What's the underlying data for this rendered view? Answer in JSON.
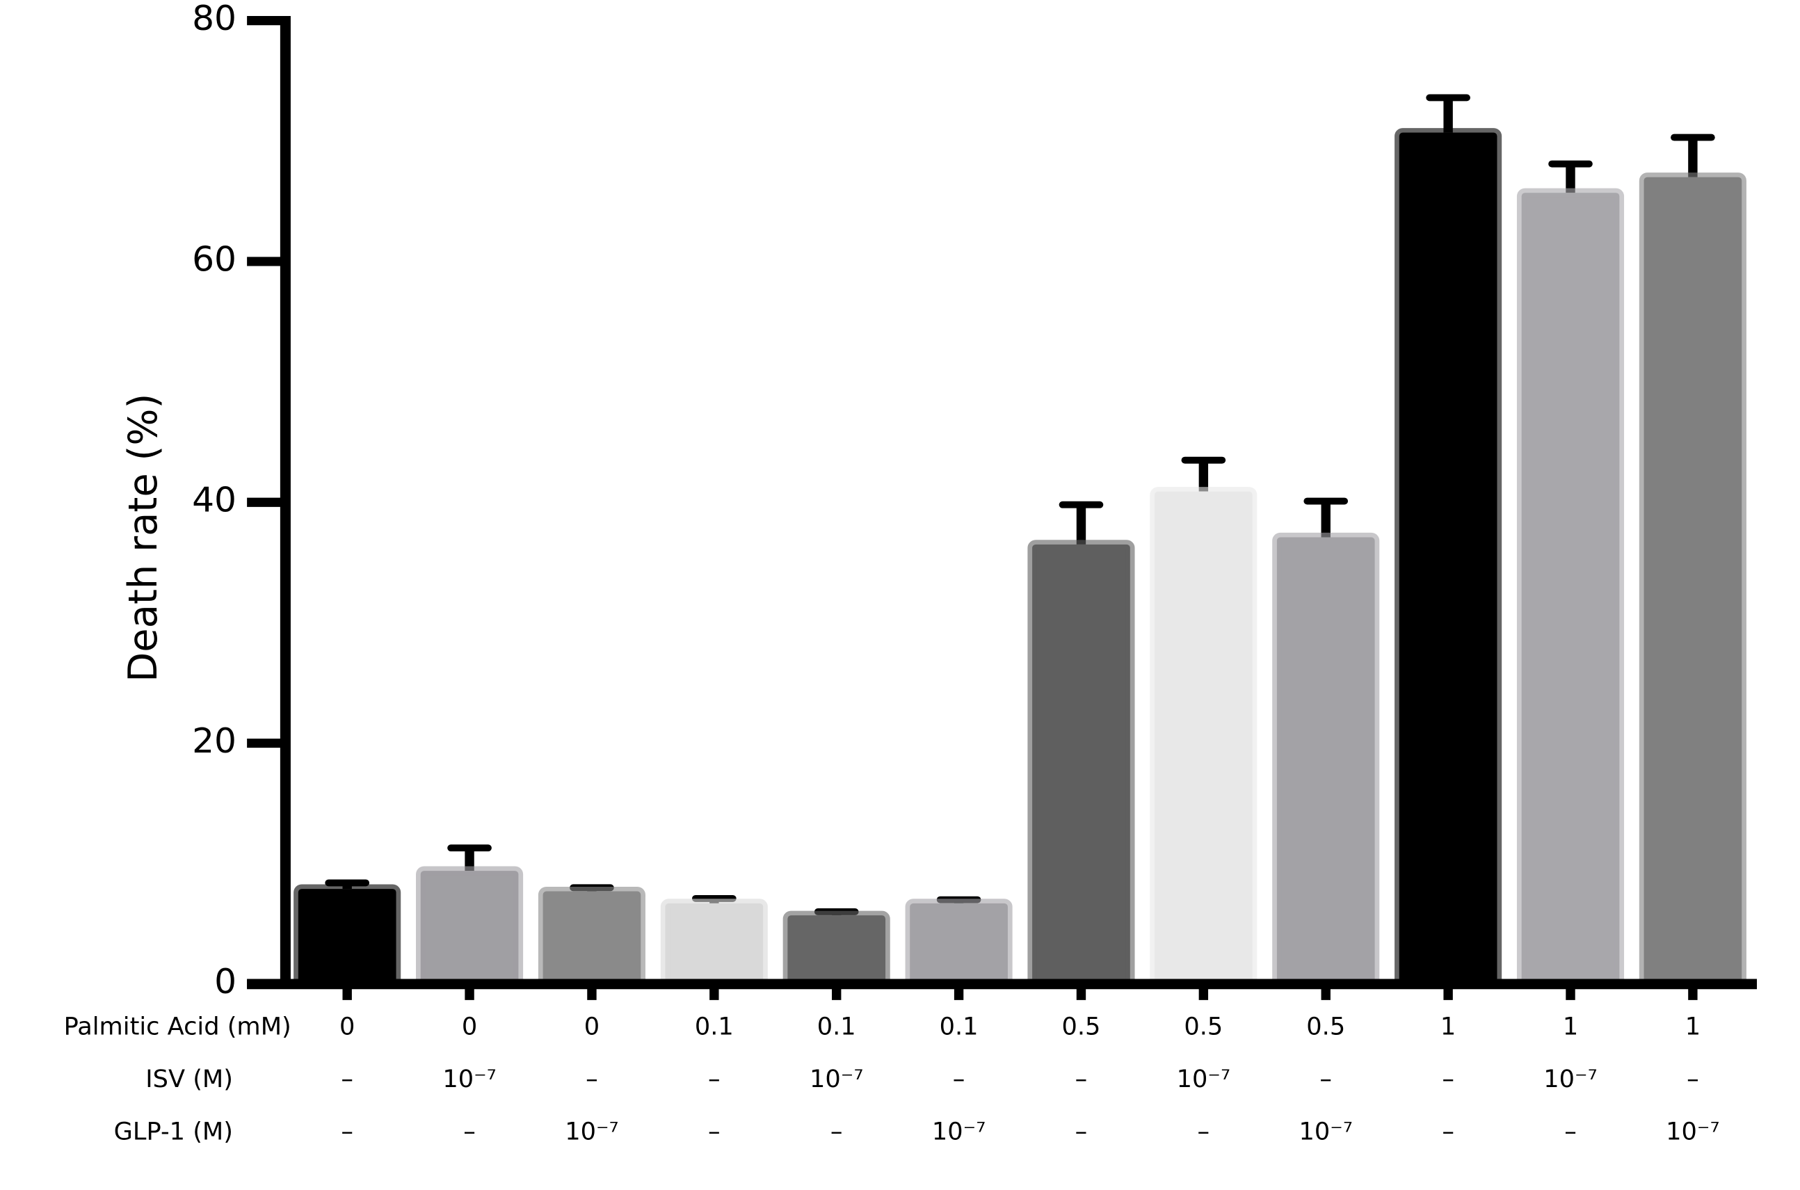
{
  "chart_data": {
    "type": "bar",
    "y_label": "Death rate (%)",
    "ylim": [
      0,
      80
    ],
    "yticks": [
      0,
      20,
      40,
      60,
      80
    ],
    "category_rows": [
      {
        "label": "Palmitic Acid (mM)",
        "labels": [
          "0",
          "0",
          "0",
          "0.1",
          "0.1",
          "0.1",
          "0.5",
          "0.5",
          "0.5",
          "1",
          "1",
          "1"
        ]
      },
      {
        "label": "ISV (M)",
        "labels": [
          "–",
          "10⁻⁷",
          "–",
          "–",
          "10⁻⁷",
          "–",
          "–",
          "10⁻⁷",
          "–",
          "–",
          "10⁻⁷",
          "–"
        ]
      },
      {
        "label": "GLP-1 (M)",
        "labels": [
          "–",
          "–",
          "10⁻⁷",
          "–",
          "–",
          "10⁻⁷",
          "–",
          "–",
          "10⁻⁷",
          "–",
          "–",
          "10⁻⁷"
        ]
      }
    ],
    "values": [
      7.9,
      9.4,
      7.7,
      6.7,
      5.7,
      6.7,
      36.5,
      40.9,
      37.1,
      70.7,
      65.7,
      67.0
    ],
    "errors": [
      0.5,
      1.9,
      0.3,
      0.4,
      0.3,
      0.3,
      3.3,
      2.6,
      3.0,
      2.9,
      2.4,
      3.3
    ],
    "colors": [
      "#000000",
      "#a09fa3",
      "#8a8a8a",
      "#d9d9d9",
      "#666666",
      "#a3a2a6",
      "#5f5f5f",
      "#e8e8e8",
      "#a3a2a6",
      "#000000",
      "#a8a7ab",
      "#808080"
    ]
  }
}
